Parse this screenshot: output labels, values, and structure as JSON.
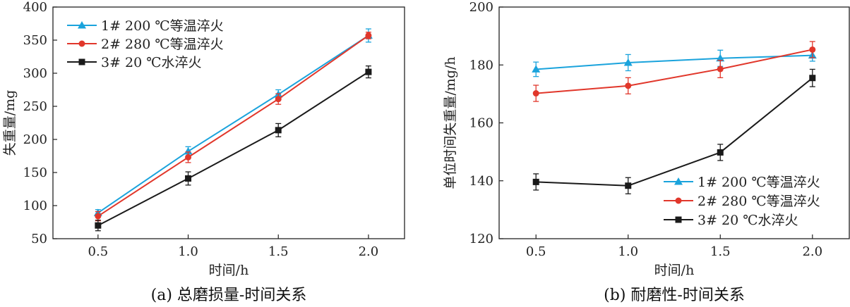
{
  "chart_data": [
    {
      "type": "line",
      "caption": "(a) 总磨损量-时间关系",
      "xlabel": "时间/h",
      "ylabel": "失重量/mg",
      "x": [
        0.5,
        1.0,
        1.5,
        2.0
      ],
      "x_ticks": [
        "0.5",
        "1.0",
        "1.5",
        "2.0"
      ],
      "xlim": [
        0.25,
        2.2
      ],
      "ylim": [
        50,
        400
      ],
      "y_ticks": [
        "50",
        "100",
        "150",
        "200",
        "250",
        "300",
        "350",
        "400"
      ],
      "legend_position": "top-left",
      "series": [
        {
          "name": "1# 200 ℃等温淬火",
          "color": "#1aa3dc",
          "marker": "triangle",
          "values": [
            89,
            182,
            268,
            357
          ],
          "errors": [
            5,
            7,
            7,
            10
          ]
        },
        {
          "name": "2# 280 ℃等温淬火",
          "color": "#e1372b",
          "marker": "circle",
          "values": [
            84,
            173,
            261,
            357
          ],
          "errors": [
            7,
            8,
            8,
            5
          ]
        },
        {
          "name": "3# 20 ℃水淬火",
          "color": "#1a1a1a",
          "marker": "square",
          "values": [
            70,
            141,
            214,
            302
          ],
          "errors": [
            8,
            10,
            10,
            9
          ]
        }
      ]
    },
    {
      "type": "line",
      "caption": "(b) 耐磨性-时间关系",
      "xlabel": "时间/h",
      "ylabel": "单位时间失重量/mg/h",
      "x": [
        0.5,
        1.0,
        1.5,
        2.0
      ],
      "x_ticks": [
        "0.5",
        "1.0",
        "1.5",
        "2.0"
      ],
      "xlim": [
        0.3,
        2.2
      ],
      "ylim": [
        120,
        200
      ],
      "y_ticks": [
        "120",
        "140",
        "160",
        "180",
        "200"
      ],
      "legend_position": "bottom-right",
      "series": [
        {
          "name": "1# 200 ℃等温淬火",
          "color": "#1aa3dc",
          "marker": "triangle",
          "values": [
            178.5,
            180.8,
            182.3,
            183.3
          ],
          "errors": [
            2.5,
            2.8,
            2.8,
            2.0
          ]
        },
        {
          "name": "2# 280 ℃等温淬火",
          "color": "#e1372b",
          "marker": "circle",
          "values": [
            170.2,
            172.8,
            178.6,
            185.3
          ],
          "errors": [
            2.8,
            2.8,
            3.0,
            2.8
          ]
        },
        {
          "name": "3# 20 ℃水淬火",
          "color": "#1a1a1a",
          "marker": "square",
          "values": [
            139.6,
            138.3,
            149.8,
            175.5
          ],
          "errors": [
            2.8,
            2.8,
            2.8,
            3.0
          ]
        }
      ]
    }
  ]
}
